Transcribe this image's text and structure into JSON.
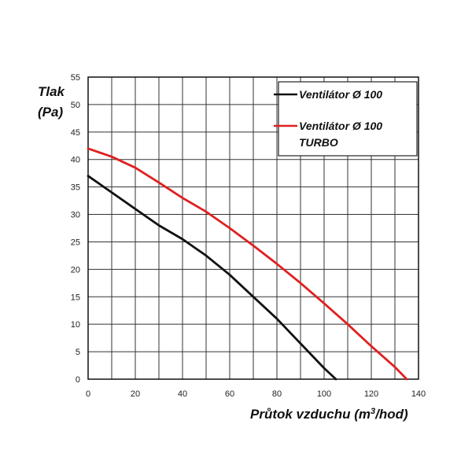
{
  "chart_data": {
    "type": "line",
    "ylabel_line1": "Tlak",
    "ylabel_line2": "(Pa)",
    "xlabel_prefix": "Průtok vzduchu (m",
    "xlabel_sup": "3",
    "xlabel_suffix": "/hod)",
    "xlim": [
      0,
      140
    ],
    "ylim": [
      0,
      55
    ],
    "x_ticks": [
      0,
      20,
      40,
      60,
      80,
      100,
      120,
      140
    ],
    "y_ticks": [
      0,
      5,
      10,
      15,
      20,
      25,
      30,
      35,
      40,
      45,
      50,
      55
    ],
    "grid": true,
    "legend_position": "top-right",
    "series": [
      {
        "name": "Ventilátor Ø 100",
        "color": "#111111",
        "x": [
          0,
          10,
          20,
          30,
          40,
          50,
          60,
          70,
          80,
          90,
          100,
          105
        ],
        "y": [
          37,
          34,
          31,
          28,
          25.5,
          22.5,
          19,
          15,
          11,
          6.5,
          2,
          0
        ]
      },
      {
        "name_line1": "Ventilátor Ø 100",
        "name_line2": "TURBO",
        "color": "#e02020",
        "x": [
          0,
          10,
          20,
          30,
          40,
          50,
          60,
          70,
          80,
          90,
          100,
          110,
          120,
          130,
          135
        ],
        "y": [
          42,
          40.5,
          38.5,
          35.8,
          33,
          30.5,
          27.5,
          24.3,
          21,
          17.5,
          13.8,
          10,
          6,
          2.2,
          0
        ]
      }
    ]
  }
}
